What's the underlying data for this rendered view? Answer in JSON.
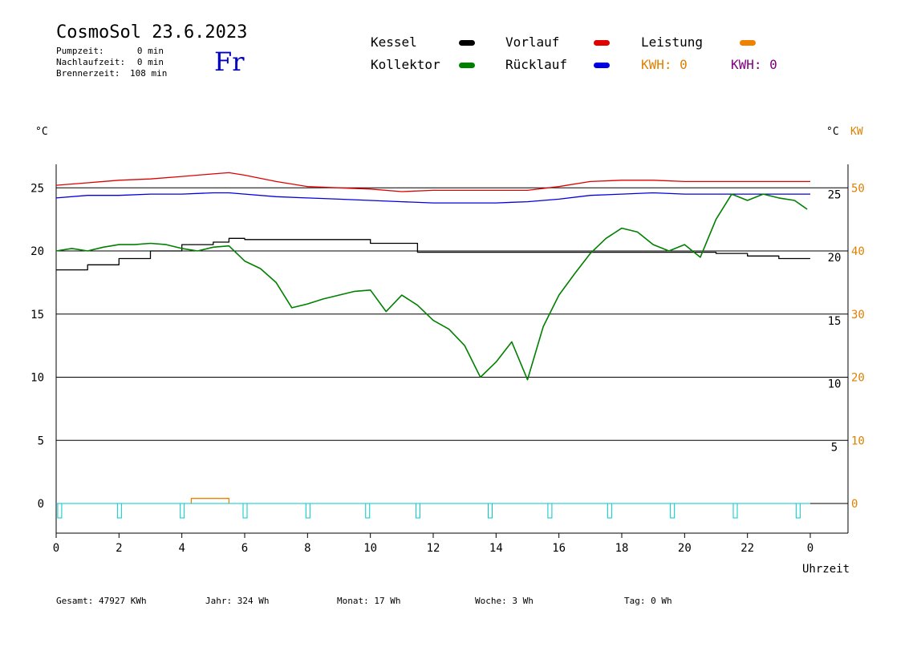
{
  "header": {
    "title": "CosmoSol 23.6.2023",
    "day": "Fr",
    "stats": [
      {
        "label": "Pumpzeit:",
        "value": "0 min"
      },
      {
        "label": "Nachlaufzeit:",
        "value": "0 min"
      },
      {
        "label": "Brennerzeit:",
        "value": "108 min"
      }
    ]
  },
  "legend": {
    "kessel": {
      "label": "Kessel",
      "color": "#000000"
    },
    "vorlauf": {
      "label": "Vorlauf",
      "color": "#e00000"
    },
    "leistung": {
      "label": "Leistung",
      "color": "#f08000"
    },
    "kollektor": {
      "label": "Kollektor",
      "color": "#008000"
    },
    "ruecklauf": {
      "label": "Rücklauf",
      "color": "#0000e0"
    },
    "kwh1": {
      "label": "KWH: 0",
      "color": "#e08000"
    },
    "kwh2": {
      "label": "KWH: 0",
      "color": "#800080"
    }
  },
  "units": {
    "left": "°C",
    "right_c": "°C",
    "right_kw": "KW"
  },
  "footer": {
    "gesamt": {
      "label": "Gesamt:",
      "value": "47927 KWh"
    },
    "jahr": {
      "label": "Jahr:",
      "value": "324 Wh"
    },
    "monat": {
      "label": "Monat:",
      "value": "17 Wh"
    },
    "woche": {
      "label": "Woche:",
      "value": "3 Wh"
    },
    "tag": {
      "label": "Tag:",
      "value": "0 Wh"
    }
  },
  "chart_data": {
    "type": "line",
    "title": "CosmoSol 23.6.2023",
    "xlabel": "Uhrzeit",
    "ylabel": "°C",
    "xlim": [
      0,
      24
    ],
    "ylim": [
      -2,
      27
    ],
    "x_ticks": [
      "0",
      "2",
      "4",
      "6",
      "8",
      "10",
      "12",
      "14",
      "16",
      "18",
      "20",
      "22",
      "0"
    ],
    "y_ticks_left": [
      0,
      5,
      10,
      15,
      20,
      25
    ],
    "y_ticks_right_c": [
      5,
      10,
      15,
      20,
      25
    ],
    "y_ticks_right_kw": [
      0,
      10,
      20,
      30,
      40,
      50
    ],
    "grid": true,
    "series": [
      {
        "name": "Kessel",
        "color": "#000000",
        "x": [
          0,
          1,
          2,
          3,
          4,
          5,
          5.5,
          6,
          7,
          8,
          9,
          9.8,
          10,
          11,
          11.5,
          12,
          14,
          16,
          18,
          20,
          20.8,
          21,
          22,
          23,
          24
        ],
        "y": [
          18.5,
          18.9,
          19.4,
          20.0,
          20.5,
          20.7,
          21.0,
          20.9,
          20.9,
          20.9,
          20.9,
          20.9,
          20.6,
          20.6,
          19.9,
          19.9,
          19.9,
          19.9,
          19.9,
          19.9,
          19.9,
          19.8,
          19.6,
          19.4,
          19.4
        ]
      },
      {
        "name": "Vorlauf",
        "color": "#e00000",
        "x": [
          0,
          1,
          2,
          3,
          4,
          5,
          5.5,
          6,
          7,
          8,
          9,
          10,
          11,
          12,
          14,
          15,
          16,
          17,
          18,
          19,
          20,
          21,
          22,
          23,
          24
        ],
        "y": [
          25.2,
          25.4,
          25.6,
          25.7,
          25.9,
          26.1,
          26.2,
          26.0,
          25.5,
          25.1,
          25.0,
          24.9,
          24.7,
          24.8,
          24.8,
          24.8,
          25.1,
          25.5,
          25.6,
          25.6,
          25.5,
          25.5,
          25.5,
          25.5,
          25.5
        ]
      },
      {
        "name": "Rücklauf",
        "color": "#0000e0",
        "x": [
          0,
          1,
          2,
          3,
          4,
          5,
          5.5,
          6,
          7,
          8,
          9,
          10,
          11,
          12,
          14,
          15,
          16,
          17,
          18,
          19,
          20,
          21,
          22,
          23,
          24
        ],
        "y": [
          24.2,
          24.4,
          24.4,
          24.5,
          24.5,
          24.6,
          24.6,
          24.5,
          24.3,
          24.2,
          24.1,
          24.0,
          23.9,
          23.8,
          23.8,
          23.9,
          24.1,
          24.4,
          24.5,
          24.6,
          24.5,
          24.5,
          24.5,
          24.5,
          24.5
        ]
      },
      {
        "name": "Kollektor",
        "color": "#008000",
        "x": [
          0,
          0.5,
          1,
          1.5,
          2,
          2.5,
          3,
          3.5,
          4,
          4.5,
          5,
          5.5,
          6,
          6.5,
          7,
          7.5,
          8,
          8.5,
          9,
          9.5,
          10,
          10.5,
          11,
          11.5,
          12,
          12.5,
          13,
          13.5,
          14,
          14.5,
          15,
          15.5,
          16,
          16.5,
          17,
          17.5,
          18,
          18.5,
          19,
          19.5,
          20,
          20.5,
          21,
          21.5,
          22,
          22.5,
          23,
          23.5,
          23.9
        ],
        "y": [
          20.0,
          20.2,
          20.0,
          20.3,
          20.5,
          20.5,
          20.6,
          20.5,
          20.2,
          20.0,
          20.3,
          20.4,
          19.2,
          18.6,
          17.5,
          15.5,
          15.8,
          16.2,
          16.5,
          16.8,
          16.9,
          15.2,
          16.5,
          15.7,
          14.5,
          13.8,
          12.5,
          10.0,
          11.2,
          12.8,
          9.8,
          14.0,
          16.5,
          18.2,
          19.8,
          21.0,
          21.8,
          21.5,
          20.5,
          20.0,
          20.5,
          19.5,
          22.5,
          24.5,
          24.0,
          24.5,
          24.2,
          24.0,
          23.3
        ]
      },
      {
        "name": "Leistung",
        "color": "#f08000",
        "x": [
          4.3,
          4.3,
          5.5,
          5.5
        ],
        "y": [
          0,
          0.4,
          0.4,
          0
        ]
      }
    ],
    "pump_markers_hours": [
      0.1,
      2.0,
      4.0,
      6.0,
      8.0,
      9.9,
      11.5,
      13.8,
      15.7,
      17.6,
      19.6,
      21.6,
      23.6
    ]
  }
}
